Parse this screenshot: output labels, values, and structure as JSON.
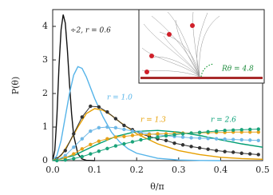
{
  "chart_data": {
    "type": "line",
    "x_label": "θ/π",
    "y_label": "P(θ)",
    "xlim": [
      0,
      0.5
    ],
    "ylim": [
      0,
      4.5
    ],
    "xticks": [
      {
        "value": 0,
        "label": "0.0"
      },
      0.1,
      0.2,
      0.3,
      0.4,
      0.5
    ],
    "yticks": [
      0,
      1,
      2,
      3,
      4
    ],
    "inset_label": "Rθ = 4.8",
    "series": [
      {
        "name": "÷2, r = 0.6",
        "color": "#111111",
        "markers": false,
        "x": [
          0,
          0.005,
          0.01,
          0.015,
          0.02,
          0.025,
          0.03,
          0.035,
          0.04,
          0.045,
          0.05,
          0.06,
          0.07,
          0.08,
          0.1
        ],
        "values": [
          0,
          0.3,
          1.3,
          2.8,
          3.9,
          4.35,
          4.1,
          3.3,
          2.3,
          1.4,
          0.75,
          0.2,
          0.05,
          0.01,
          0
        ]
      },
      {
        "name": "r = 1.0",
        "color": "#56b4e9",
        "markers": false,
        "x": [
          0,
          0.01,
          0.02,
          0.03,
          0.04,
          0.05,
          0.06,
          0.07,
          0.08,
          0.1,
          0.12,
          0.14,
          0.16,
          0.18,
          0.2,
          0.25,
          0.3,
          0.35,
          0.4
        ],
        "values": [
          0,
          0.15,
          0.6,
          1.3,
          2.0,
          2.55,
          2.8,
          2.75,
          2.5,
          1.85,
          1.3,
          0.85,
          0.55,
          0.35,
          0.22,
          0.07,
          0.02,
          0.005,
          0
        ]
      },
      {
        "name": "r = 1.3",
        "color": "#e69f00",
        "markers": false,
        "x": [
          0,
          0.02,
          0.04,
          0.06,
          0.08,
          0.1,
          0.12,
          0.14,
          0.16,
          0.2,
          0.25,
          0.3,
          0.35,
          0.4,
          0.45,
          0.5
        ],
        "values": [
          0,
          0.15,
          0.55,
          1.0,
          1.4,
          1.55,
          1.5,
          1.35,
          1.15,
          0.8,
          0.5,
          0.3,
          0.18,
          0.1,
          0.06,
          0.04
        ]
      },
      {
        "name": "r = 2.6",
        "color": "#009e73",
        "markers": false,
        "x": [
          0,
          0.05,
          0.1,
          0.15,
          0.2,
          0.25,
          0.3,
          0.35,
          0.4,
          0.45,
          0.5
        ],
        "values": [
          0,
          0.15,
          0.45,
          0.72,
          0.87,
          0.9,
          0.85,
          0.75,
          0.62,
          0.5,
          0.4
        ]
      },
      {
        "color": "#333333",
        "markers": true,
        "x": [
          0.01,
          0.03,
          0.05,
          0.07,
          0.09,
          0.11,
          0.13,
          0.15,
          0.17,
          0.19,
          0.21,
          0.23,
          0.25,
          0.27,
          0.29,
          0.31,
          0.33,
          0.35,
          0.37,
          0.39,
          0.41,
          0.43,
          0.45,
          0.47,
          0.49
        ],
        "values": [
          0.05,
          0.3,
          0.8,
          1.3,
          1.62,
          1.6,
          1.45,
          1.25,
          1.05,
          0.92,
          0.8,
          0.72,
          0.65,
          0.6,
          0.52,
          0.47,
          0.42,
          0.38,
          0.34,
          0.3,
          0.27,
          0.25,
          0.22,
          0.2,
          0.18
        ]
      },
      {
        "color": "#6fb8e6",
        "markers": true,
        "x": [
          0.01,
          0.03,
          0.05,
          0.07,
          0.09,
          0.11,
          0.13,
          0.15,
          0.17,
          0.19,
          0.21,
          0.23,
          0.25,
          0.27,
          0.29,
          0.31,
          0.33,
          0.35,
          0.37,
          0.39,
          0.41,
          0.43,
          0.45,
          0.47,
          0.49
        ],
        "values": [
          0.02,
          0.15,
          0.4,
          0.65,
          0.88,
          0.98,
          1.0,
          0.98,
          0.93,
          0.88,
          0.84,
          0.8,
          0.77,
          0.74,
          0.72,
          0.7,
          0.68,
          0.67,
          0.66,
          0.65,
          0.64,
          0.63,
          0.62,
          0.61,
          0.6
        ]
      },
      {
        "color": "#e6a21a",
        "markers": true,
        "x": [
          0.01,
          0.03,
          0.05,
          0.07,
          0.09,
          0.11,
          0.13,
          0.15,
          0.17,
          0.19,
          0.21,
          0.23,
          0.25,
          0.27,
          0.29,
          0.31,
          0.33,
          0.35,
          0.37,
          0.39,
          0.41,
          0.43,
          0.45,
          0.47,
          0.49
        ],
        "values": [
          0.01,
          0.08,
          0.2,
          0.35,
          0.48,
          0.58,
          0.65,
          0.7,
          0.72,
          0.75,
          0.77,
          0.78,
          0.8,
          0.8,
          0.81,
          0.82,
          0.82,
          0.83,
          0.83,
          0.84,
          0.84,
          0.85,
          0.85,
          0.85,
          0.85
        ]
      },
      {
        "color": "#1aa37a",
        "markers": true,
        "x": [
          0.01,
          0.03,
          0.05,
          0.07,
          0.09,
          0.11,
          0.13,
          0.15,
          0.17,
          0.19,
          0.21,
          0.23,
          0.25,
          0.27,
          0.29,
          0.31,
          0.33,
          0.35,
          0.37,
          0.39,
          0.41,
          0.43,
          0.45,
          0.47,
          0.49
        ],
        "values": [
          0,
          0.02,
          0.06,
          0.12,
          0.2,
          0.28,
          0.36,
          0.44,
          0.5,
          0.56,
          0.62,
          0.66,
          0.7,
          0.74,
          0.77,
          0.8,
          0.82,
          0.84,
          0.86,
          0.88,
          0.9,
          0.91,
          0.92,
          0.93,
          0.94
        ]
      }
    ]
  }
}
